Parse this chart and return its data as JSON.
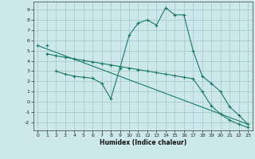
{
  "background_color": "#cce8e8",
  "grid_color": "#aacccc",
  "line_color": "#1a7a6a",
  "xlabel": "Humidex (Indice chaleur)",
  "xlim": [
    -0.5,
    23.5
  ],
  "ylim": [
    -2.8,
    9.8
  ],
  "xticks": [
    0,
    1,
    2,
    3,
    4,
    5,
    6,
    7,
    8,
    9,
    10,
    11,
    12,
    13,
    14,
    15,
    16,
    17,
    18,
    19,
    20,
    21,
    22,
    23
  ],
  "yticks": [
    -2,
    -1,
    0,
    1,
    2,
    3,
    4,
    5,
    6,
    7,
    8,
    9
  ],
  "line1_x": [
    0,
    1,
    23
  ],
  "line1_y": [
    5.5,
    5.5,
    -2.2
  ],
  "line2_x": [
    1,
    2,
    3,
    4,
    5,
    6,
    7,
    8,
    9,
    10,
    11,
    12,
    13,
    14,
    15,
    16,
    17,
    18,
    19,
    20,
    21,
    22,
    23
  ],
  "line2_y": [
    4.7,
    4.5,
    4.35,
    4.2,
    4.05,
    3.9,
    3.75,
    3.6,
    3.45,
    3.3,
    3.15,
    3.0,
    2.85,
    2.7,
    2.55,
    2.4,
    2.25,
    1.0,
    -0.4,
    -1.2,
    -1.8,
    -2.2,
    -2.5
  ],
  "line3_x": [
    2,
    3,
    4,
    5,
    6,
    7,
    8,
    9,
    10,
    11,
    12,
    13,
    14,
    15,
    16,
    17,
    18,
    19,
    20,
    21,
    22,
    23
  ],
  "line3_y": [
    3.0,
    2.7,
    2.5,
    2.4,
    2.3,
    1.8,
    0.3,
    3.3,
    6.5,
    7.7,
    8.0,
    7.5,
    9.2,
    8.5,
    8.5,
    5.0,
    2.5,
    1.8,
    1.0,
    -0.5,
    -1.3,
    -2.2
  ]
}
